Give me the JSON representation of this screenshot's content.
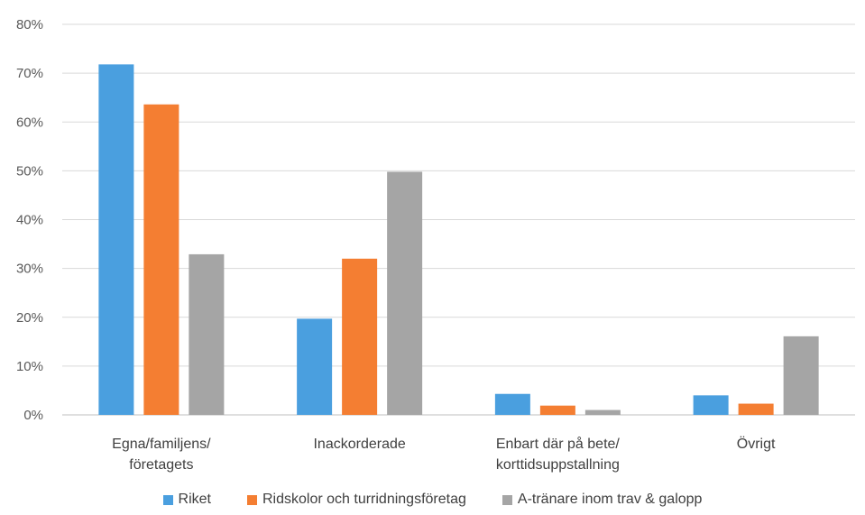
{
  "chart_data": {
    "type": "bar",
    "categories": [
      [
        "Egna/familjens/",
        "företagets"
      ],
      [
        "Inackorderade"
      ],
      [
        "Enbart där på bete/",
        "korttidsuppstallning"
      ],
      [
        "Övrigt"
      ]
    ],
    "series": [
      {
        "name": "Riket",
        "color": "#4A9FDF",
        "values": [
          71.8,
          19.7,
          4.3,
          4.0
        ]
      },
      {
        "name": "Ridskolor och turridningsföretag",
        "color": "#F47E32",
        "values": [
          63.6,
          32.0,
          1.9,
          2.3
        ]
      },
      {
        "name": "A-tränare inom trav & galopp",
        "color": "#A5A5A5",
        "values": [
          32.9,
          49.8,
          1.0,
          16.1
        ]
      }
    ],
    "ylim": [
      0,
      80
    ],
    "yticks": [
      "0%",
      "10%",
      "20%",
      "30%",
      "40%",
      "50%",
      "60%",
      "70%",
      "80%"
    ],
    "grid": true,
    "legend_position": "bottom"
  }
}
